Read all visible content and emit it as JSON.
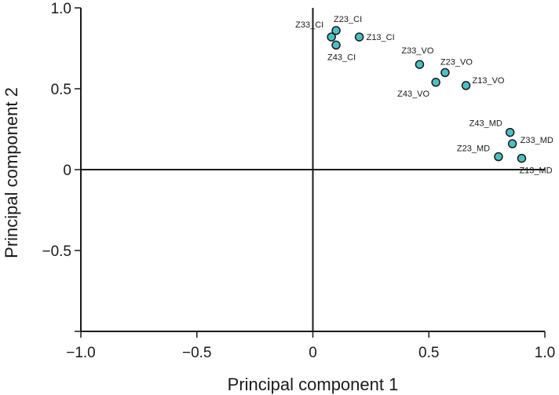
{
  "chart_data": {
    "type": "scatter",
    "title": "",
    "xlabel": "Principal component 1",
    "ylabel": "Principal component 2",
    "xlim": [
      -1.0,
      1.0
    ],
    "ylim": [
      -1.0,
      1.0
    ],
    "xticks": [
      -1.0,
      -0.5,
      0,
      0.5,
      1.0
    ],
    "xtick_labels": [
      "−1.0",
      "−0.5",
      "0",
      "0.5",
      "1.0"
    ],
    "yticks": [
      -1.0,
      -0.5,
      0,
      0.5,
      1.0
    ],
    "ytick_labels": [
      "",
      "−0.5",
      "0",
      "0.5",
      "1.0"
    ],
    "grid": false,
    "marker_color": "#4bbfc6",
    "points": [
      {
        "label": "Z33_CI",
        "x": 0.08,
        "y": 0.82
      },
      {
        "label": "Z23_CI",
        "x": 0.1,
        "y": 0.86
      },
      {
        "label": "Z13_CI",
        "x": 0.2,
        "y": 0.82
      },
      {
        "label": "Z43_CI",
        "x": 0.1,
        "y": 0.77
      },
      {
        "label": "Z33_VO",
        "x": 0.46,
        "y": 0.65
      },
      {
        "label": "Z23_VO",
        "x": 0.57,
        "y": 0.6
      },
      {
        "label": "Z43_VO",
        "x": 0.53,
        "y": 0.54
      },
      {
        "label": "Z13_VO",
        "x": 0.66,
        "y": 0.52
      },
      {
        "label": "Z43_MD",
        "x": 0.85,
        "y": 0.23
      },
      {
        "label": "Z33_MD",
        "x": 0.86,
        "y": 0.16
      },
      {
        "label": "Z23_MD",
        "x": 0.8,
        "y": 0.08
      },
      {
        "label": "Z13_MD",
        "x": 0.9,
        "y": 0.07
      }
    ]
  }
}
